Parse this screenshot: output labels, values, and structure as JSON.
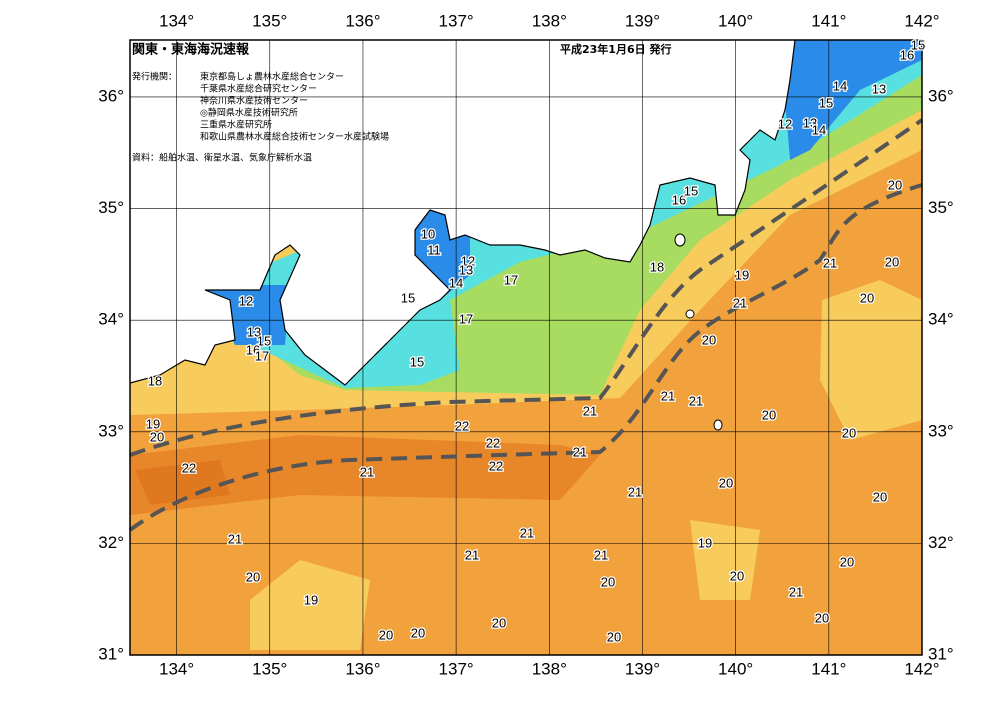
{
  "map": {
    "title": "関東・東海海況速報",
    "issue_date": "平成23年1月6日 発行",
    "issuer_label": "発行機関：",
    "issuers": [
      "東京都島しょ農林水産総合センター",
      "千葉県水産総合研究センター",
      "神奈川県水産技術センター",
      "◎静岡県水産技術研究所",
      "三重県水産研究所",
      "和歌山県農林水産総合技術センター水産試験場"
    ],
    "source": "資料：船舶水温、衛星水温、気象庁解析水温",
    "lon_ticks": [
      {
        "value": 134,
        "label": "134°"
      },
      {
        "value": 135,
        "label": "135°"
      },
      {
        "value": 136,
        "label": "136°"
      },
      {
        "value": 137,
        "label": "137°"
      },
      {
        "value": 138,
        "label": "138°"
      },
      {
        "value": 139,
        "label": "139°"
      },
      {
        "value": 140,
        "label": "140°"
      },
      {
        "value": 141,
        "label": "141°"
      },
      {
        "value": 142,
        "label": "142°"
      }
    ],
    "lat_ticks": [
      {
        "value": 31,
        "label": "31°"
      },
      {
        "value": 32,
        "label": "32°"
      },
      {
        "value": 33,
        "label": "33°"
      },
      {
        "value": 34,
        "label": "34°"
      },
      {
        "value": 35,
        "label": "35°"
      },
      {
        "value": 36,
        "label": "36°"
      }
    ],
    "contour_labels": [
      18,
      19,
      20,
      22,
      21,
      20,
      12,
      13,
      15,
      16,
      17,
      15,
      10,
      11,
      12,
      13,
      14,
      17,
      17,
      15,
      18,
      19,
      16,
      15,
      12,
      13,
      14,
      15,
      14,
      13,
      15,
      16,
      20,
      21,
      20,
      20,
      21,
      20,
      21,
      21,
      21,
      20,
      20,
      22,
      22,
      22,
      21,
      21,
      21,
      20,
      20,
      21,
      19,
      21,
      21,
      20,
      20,
      20,
      19,
      21,
      20,
      20,
      20,
      20,
      20
    ]
  }
}
